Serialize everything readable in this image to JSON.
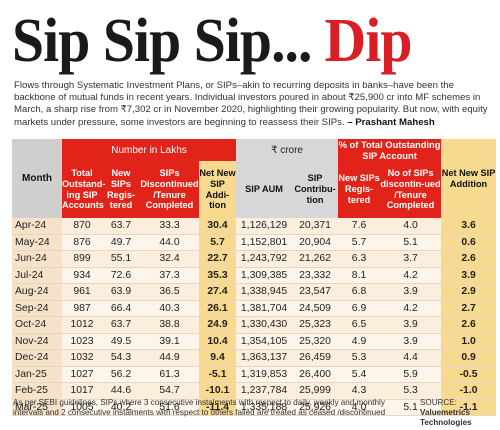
{
  "headline": {
    "main": "Sip Sip Sip...",
    "accent": "Dip"
  },
  "intro": {
    "text": "Flows through Systematic Investment Plans, or SIPs–akin to recurring deposits in banks–have been the backbone of mutual funds in recent years. Individual investors poured in about ₹25,900 cr into MF schemes in March, a sharp rise from ₹7,302 cr in November 2020, highlighting their growing popularity. But now, with equity markets under pressure, some investors are beginning to reassess their SIPs.",
    "byline": "– Prashant Mahesh"
  },
  "table": {
    "group_headers": {
      "month": "Month",
      "lakhs": "Number in Lakhs",
      "crore": "₹ crore",
      "pct": "% of Total Outstanding SIP Account",
      "net_pct": "Net New SIP Addition"
    },
    "columns": {
      "total": "Total Outstand-ing SIP Accounts",
      "new": "New SIPs Regis-tered",
      "disc": "SIPs Discontinued /Tenure Completed",
      "net": "Net New SIP Addi-tion",
      "aum": "SIP AUM",
      "contrib": "SIP Contribu-tion",
      "pct_new": "New SIPs Regis-tered",
      "pct_disc": "No of SIPs discontin-ued /Tenure Completed"
    },
    "rows": [
      [
        "Apr-24",
        "870",
        "63.7",
        "33.3",
        "30.4",
        "1,126,129",
        "20,371",
        "7.6",
        "4.0",
        "3.6"
      ],
      [
        "May-24",
        "876",
        "49.7",
        "44.0",
        "5.7",
        "1,152,801",
        "20,904",
        "5.7",
        "5.1",
        "0.6"
      ],
      [
        "Jun-24",
        "899",
        "55.1",
        "32.4",
        "22.7",
        "1,243,792",
        "21,262",
        "6.3",
        "3.7",
        "2.6"
      ],
      [
        "Jul-24",
        "934",
        "72.6",
        "37.3",
        "35.3",
        "1,309,385",
        "23,332",
        "8.1",
        "4.2",
        "3.9"
      ],
      [
        "Aug-24",
        "961",
        "63.9",
        "36.5",
        "27.4",
        "1,338,945",
        "23,547",
        "6.8",
        "3.9",
        "2.9"
      ],
      [
        "Sep-24",
        "987",
        "66.4",
        "40.3",
        "26.1",
        "1,381,704",
        "24,509",
        "6.9",
        "4.2",
        "2.7"
      ],
      [
        "Oct-24",
        "1012",
        "63.7",
        "38.8",
        "24.9",
        "1,330,430",
        "25,323",
        "6.5",
        "3.9",
        "2.6"
      ],
      [
        "Nov-24",
        "1023",
        "49.5",
        "39.1",
        "10.4",
        "1,354,105",
        "25,320",
        "4.9",
        "3.9",
        "1.0"
      ],
      [
        "Dec-24",
        "1032",
        "54.3",
        "44.9",
        "9.4",
        "1,363,137",
        "26,459",
        "5.3",
        "4.4",
        "0.9"
      ],
      [
        "Jan-25",
        "1027",
        "56.2",
        "61.3",
        "-5.1",
        "1,319,853",
        "26,400",
        "5.4",
        "5.9",
        "-0.5"
      ],
      [
        "Feb-25",
        "1017",
        "44.6",
        "54.7",
        "-10.1",
        "1,237,784",
        "25,999",
        "4.3",
        "5.3",
        "-1.0"
      ],
      [
        "Mar-25",
        "1005",
        "40.2",
        "51.6",
        "-11.4",
        "1,335,188",
        "25,926",
        "4.0",
        "5.1",
        "-1.1"
      ]
    ]
  },
  "footnote": "As per SEBI guidelines, SIPs where 3 consecutive instalments with respect to daily, weekly and monthly intervals and 2 consecutive instalments with respect to others failed are treated as ceased /discontinued",
  "source": {
    "label": "SOURCE:",
    "name": "Valuemetrics Technologies"
  },
  "colors": {
    "accent_red": "#e2231a",
    "highlight_yellow": "#f7d98f",
    "header_grey": "#d7d7d7",
    "row_tint": "#fbeedd"
  }
}
